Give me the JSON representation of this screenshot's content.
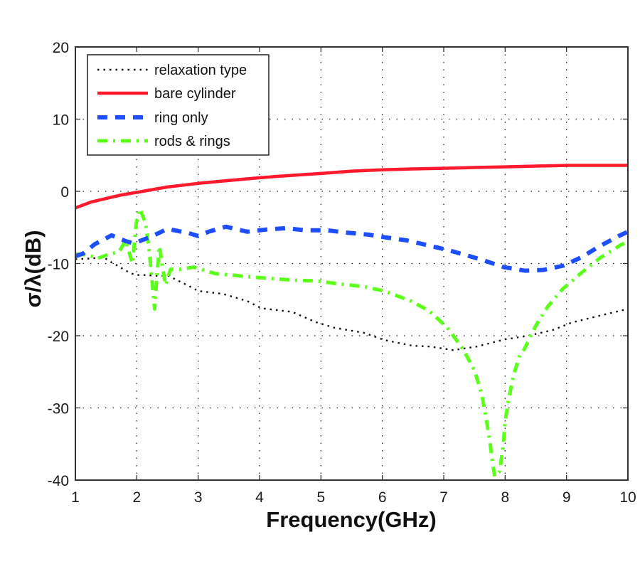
{
  "chart_data": {
    "type": "line",
    "title": "",
    "xlabel": "Frequency(GHz)",
    "ylabel": "σ/λ(dB)",
    "xlim": [
      1,
      10
    ],
    "ylim": [
      -40,
      20
    ],
    "grid": true,
    "x_ticks": [
      "1",
      "2",
      "3",
      "4",
      "5",
      "6",
      "7",
      "8",
      "9",
      "10"
    ],
    "y_ticks": [
      "20",
      "10",
      "0",
      "-10",
      "-20",
      "-30",
      "-40"
    ],
    "legend_position": "top-left",
    "series": [
      {
        "name": "relaxation type",
        "color": "#111111",
        "style": "dotted",
        "points": [
          [
            1.0,
            -9.4
          ],
          [
            1.25,
            -9.3
          ],
          [
            1.37,
            -9.2
          ],
          [
            1.49,
            -9.3
          ],
          [
            1.6,
            -9.9
          ],
          [
            1.71,
            -10.4
          ],
          [
            1.8,
            -10.9
          ],
          [
            1.92,
            -11.4
          ],
          [
            2.03,
            -11.6
          ],
          [
            2.15,
            -11.6
          ],
          [
            2.3,
            -11.7
          ],
          [
            2.52,
            -11.7
          ],
          [
            2.63,
            -12.2
          ],
          [
            2.75,
            -12.7
          ],
          [
            2.87,
            -13.2
          ],
          [
            3.0,
            -13.8
          ],
          [
            3.4,
            -14.2
          ],
          [
            3.8,
            -15.2
          ],
          [
            4.03,
            -16.2
          ],
          [
            4.53,
            -16.7
          ],
          [
            4.91,
            -18.1
          ],
          [
            5.22,
            -18.9
          ],
          [
            5.7,
            -19.6
          ],
          [
            6.03,
            -20.6
          ],
          [
            6.5,
            -21.4
          ],
          [
            6.77,
            -21.5
          ],
          [
            7.16,
            -22.0
          ],
          [
            7.54,
            -21.5
          ],
          [
            8.0,
            -20.5
          ],
          [
            8.38,
            -20.0
          ],
          [
            8.78,
            -19.2
          ],
          [
            9.08,
            -18.2
          ],
          [
            9.55,
            -17.2
          ],
          [
            10.0,
            -16.3
          ]
        ]
      },
      {
        "name": "bare cylinder",
        "color": "#ff1a2e",
        "style": "solid",
        "points": [
          [
            1.0,
            -2.3
          ],
          [
            1.25,
            -1.5
          ],
          [
            1.5,
            -1.0
          ],
          [
            1.75,
            -0.5
          ],
          [
            2.03,
            -0.1
          ],
          [
            2.5,
            0.6
          ],
          [
            3.0,
            1.1
          ],
          [
            3.5,
            1.5
          ],
          [
            4.02,
            1.9
          ],
          [
            4.5,
            2.2
          ],
          [
            5.04,
            2.5
          ],
          [
            5.5,
            2.8
          ],
          [
            6.04,
            3.0
          ],
          [
            6.5,
            3.1
          ],
          [
            7.05,
            3.2
          ],
          [
            7.5,
            3.3
          ],
          [
            8.05,
            3.4
          ],
          [
            8.5,
            3.5
          ],
          [
            9.04,
            3.6
          ],
          [
            9.5,
            3.6
          ],
          [
            10.0,
            3.6
          ]
        ]
      },
      {
        "name": "ring only",
        "color": "#1e4fff",
        "style": "dashed",
        "points": [
          [
            1.0,
            -9.0
          ],
          [
            1.13,
            -8.6
          ],
          [
            1.32,
            -7.3
          ],
          [
            1.59,
            -6.1
          ],
          [
            1.82,
            -6.9
          ],
          [
            1.95,
            -7.2
          ],
          [
            2.23,
            -6.3
          ],
          [
            2.5,
            -5.2
          ],
          [
            2.85,
            -5.8
          ],
          [
            3.0,
            -6.2
          ],
          [
            3.17,
            -5.6
          ],
          [
            3.45,
            -4.9
          ],
          [
            3.8,
            -5.6
          ],
          [
            4.1,
            -5.3
          ],
          [
            4.42,
            -5.1
          ],
          [
            4.75,
            -5.4
          ],
          [
            5.1,
            -5.4
          ],
          [
            5.4,
            -5.7
          ],
          [
            5.77,
            -6.0
          ],
          [
            6.07,
            -6.4
          ],
          [
            6.4,
            -6.8
          ],
          [
            6.7,
            -7.4
          ],
          [
            7.05,
            -8.1
          ],
          [
            7.35,
            -8.8
          ],
          [
            7.66,
            -9.6
          ],
          [
            7.98,
            -10.5
          ],
          [
            8.32,
            -11.0
          ],
          [
            8.62,
            -10.9
          ],
          [
            8.95,
            -10.3
          ],
          [
            9.25,
            -9.1
          ],
          [
            9.54,
            -7.6
          ],
          [
            9.85,
            -6.2
          ],
          [
            10.0,
            -5.6
          ]
        ]
      },
      {
        "name": "rods & rings",
        "color": "#5cff1a",
        "style": "dashdot",
        "points": [
          [
            1.0,
            -8.7
          ],
          [
            1.2,
            -8.8
          ],
          [
            1.36,
            -9.3
          ],
          [
            1.55,
            -8.7
          ],
          [
            1.71,
            -8.4
          ],
          [
            1.82,
            -6.8
          ],
          [
            1.93,
            -10.0
          ],
          [
            1.99,
            -4.5
          ],
          [
            2.05,
            -2.4
          ],
          [
            2.14,
            -4.3
          ],
          [
            2.2,
            -8.0
          ],
          [
            2.25,
            -12.5
          ],
          [
            2.29,
            -16.3
          ],
          [
            2.33,
            -11.5
          ],
          [
            2.37,
            -7.6
          ],
          [
            2.42,
            -10.5
          ],
          [
            2.47,
            -13.0
          ],
          [
            2.55,
            -10.8
          ],
          [
            2.7,
            -10.8
          ],
          [
            2.93,
            -10.5
          ],
          [
            3.28,
            -11.4
          ],
          [
            3.8,
            -11.8
          ],
          [
            4.06,
            -12.0
          ],
          [
            4.53,
            -12.3
          ],
          [
            4.9,
            -12.4
          ],
          [
            5.27,
            -12.8
          ],
          [
            5.7,
            -13.2
          ],
          [
            6.03,
            -13.8
          ],
          [
            6.47,
            -15.2
          ],
          [
            6.77,
            -16.6
          ],
          [
            7.06,
            -18.9
          ],
          [
            7.31,
            -21.8
          ],
          [
            7.4,
            -23.2
          ],
          [
            7.5,
            -24.8
          ],
          [
            7.62,
            -28.1
          ],
          [
            7.69,
            -31.4
          ],
          [
            7.75,
            -34.6
          ],
          [
            7.8,
            -37.9
          ],
          [
            7.83,
            -39.5
          ],
          [
            7.91,
            -38.8
          ],
          [
            7.97,
            -35.2
          ],
          [
            8.0,
            -31.9
          ],
          [
            8.06,
            -28.7
          ],
          [
            8.14,
            -25.4
          ],
          [
            8.23,
            -22.9
          ],
          [
            8.31,
            -21.9
          ],
          [
            8.5,
            -18.6
          ],
          [
            8.7,
            -15.9
          ],
          [
            8.93,
            -13.6
          ],
          [
            9.24,
            -11.3
          ],
          [
            9.55,
            -9.2
          ],
          [
            9.89,
            -7.4
          ],
          [
            10.0,
            -7.0
          ]
        ]
      }
    ]
  }
}
